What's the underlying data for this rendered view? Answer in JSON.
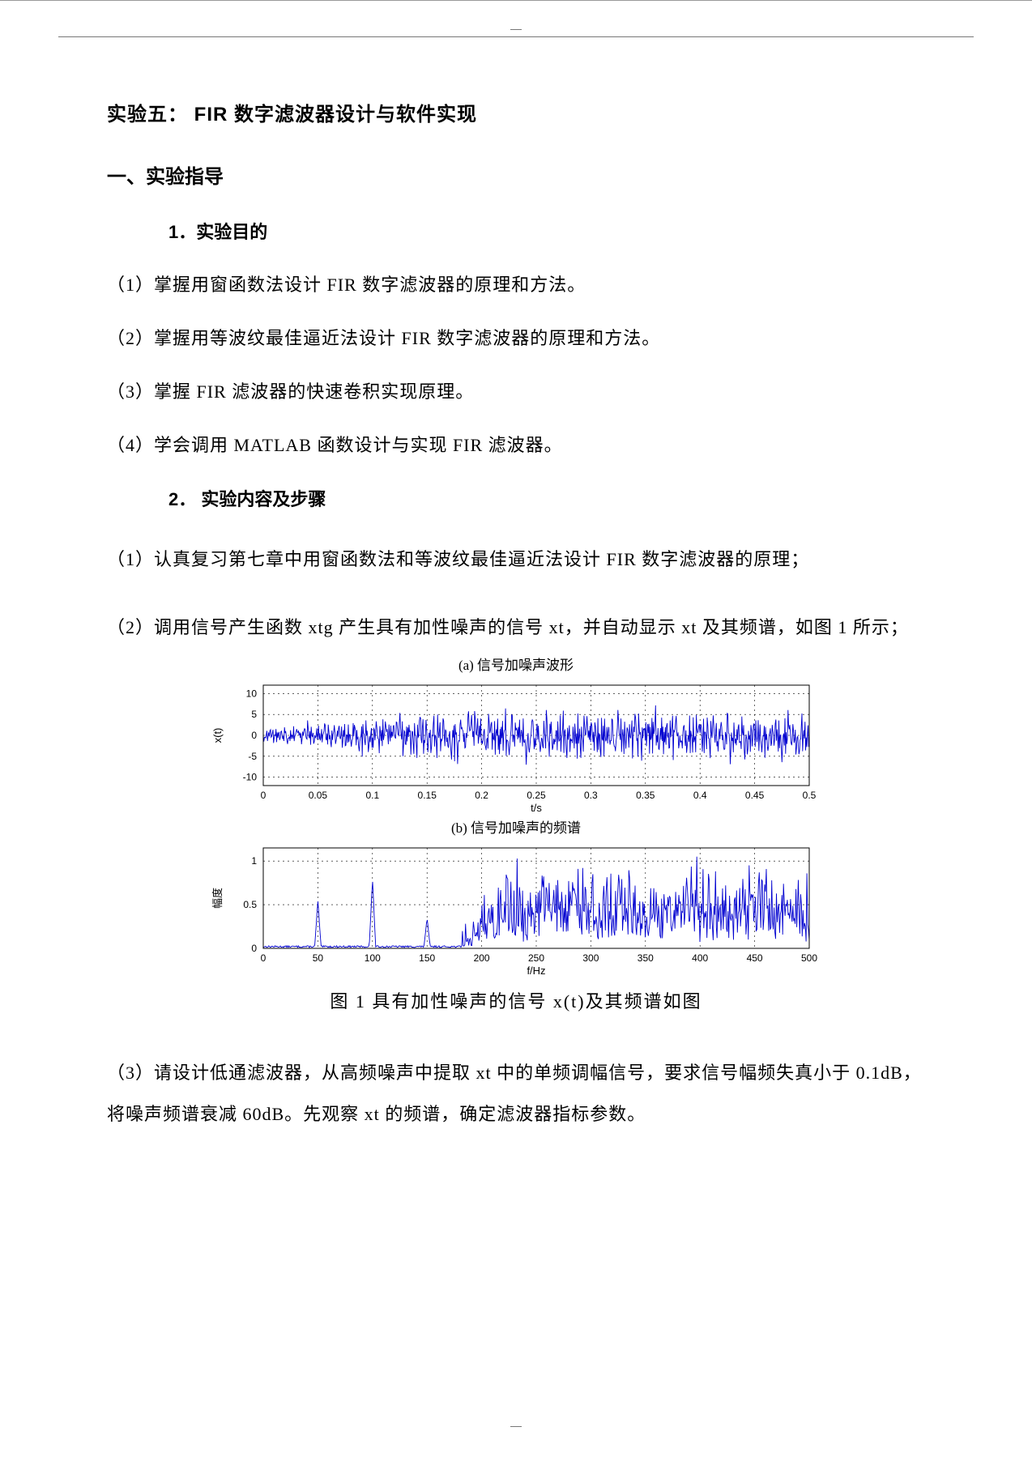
{
  "header": {},
  "title": "实验五：  FIR 数字滤波器设计与软件实现",
  "section1_head": "一、实验指导",
  "sub_head1": "1．实验目的",
  "items1": [
    "（1）掌握用窗函数法设计   FIR 数字滤波器的原理和方法。",
    "（2）掌握用等波纹最佳逼近法设计    FIR 数字滤波器的原理和方法。",
    "（3）掌握 FIR 滤波器的快速卷积实现原理。",
    "（4）学会调用 MATLAB   函数设计与实现   FIR 滤波器。"
  ],
  "sub_head2": "2．  实验内容及步骤",
  "items2_a": "（1）认真复习第七章中用窗函数法和等波纹最佳逼近法设计        FIR 数字滤波器的原理；",
  "items2_b": "（2）调用信号产生函数 xtg 产生具有加性噪声的信号 xt，并自动显示 xt 及其频谱，如图 1 所示；",
  "figure": {
    "caption": "图 1 具有加性噪声的信号    x(t)及其频谱如图",
    "top_title": "(a) 信号加噪声波形",
    "bot_title": "(b) 信号加噪声的频谱",
    "chart_a": {
      "type": "line",
      "xlabel": "t/s",
      "ylabel": "x(t)",
      "xlim": [
        0,
        0.5
      ],
      "ylim": [
        -12,
        12
      ],
      "xticks": [
        0,
        0.05,
        0.1,
        0.15,
        0.2,
        0.25,
        0.3,
        0.35,
        0.4,
        0.45,
        0.5
      ],
      "yticks": [
        -10,
        -5,
        0,
        5,
        10
      ],
      "line_color": "#0000d0",
      "bg_color": "#ffffff",
      "axis_color": "#000000",
      "grid_color": "#000000",
      "grid_dash": "2,4",
      "tick_fontsize": 12,
      "label_fontsize": 13,
      "noise_amp_low": 3,
      "noise_amp_high": 10
    },
    "chart_b": {
      "type": "line",
      "xlabel": "f/Hz",
      "ylabel": "幅度",
      "xlim": [
        0,
        500
      ],
      "ylim": [
        0,
        1.15
      ],
      "xticks": [
        0,
        50,
        100,
        150,
        200,
        250,
        300,
        350,
        400,
        450,
        500
      ],
      "yticks": [
        0,
        0.5,
        1
      ],
      "line_color": "#0000d0",
      "bg_color": "#ffffff",
      "axis_color": "#000000",
      "grid_color": "#000000",
      "grid_dash": "2,4",
      "tick_fontsize": 12,
      "label_fontsize": 13,
      "spikes_f": [
        50,
        100,
        150
      ],
      "spikes_h": [
        0.55,
        0.8,
        0.35
      ],
      "noise_floor_start_f": 180,
      "noise_floor_min": 0.15,
      "noise_floor_max": 0.9
    }
  },
  "items2_c": "（3）请设计低通滤波器，从高频噪声中提取 xt 中的单频调幅信号，要求信号幅频失真小于 0.1dB，将噪声频谱衰减 60dB。先观察 xt 的频谱，确定滤波器指标参数。"
}
